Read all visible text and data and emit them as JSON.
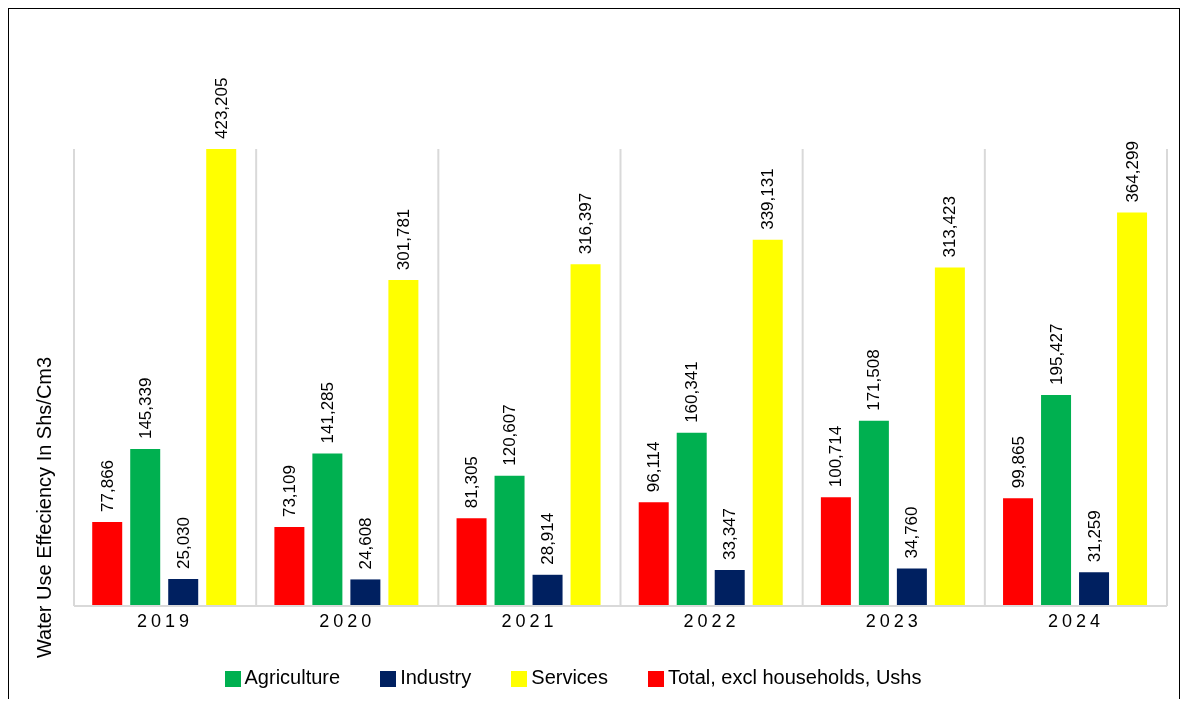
{
  "chart_data": {
    "type": "bar",
    "ylabel": "Water  Use Effeciency In Shs/Cm3",
    "categories": [
      "2019",
      "2020",
      "2021",
      "2022",
      "2023",
      "2024"
    ],
    "series": [
      {
        "name": "Total, excl households, Ushs",
        "color": "#ff0000",
        "values": [
          77866,
          73109,
          81305,
          96114,
          100714,
          99865
        ],
        "value_labels": [
          "77,866",
          "73,109",
          "81,305",
          "96,114",
          "100,714",
          "99,865"
        ]
      },
      {
        "name": "Agriculture",
        "color": "#00b050",
        "values": [
          145339,
          141285,
          120607,
          160341,
          171508,
          195427
        ],
        "value_labels": [
          "145,339",
          "141,285",
          "120,607",
          "160,341",
          "171,508",
          "195,427"
        ]
      },
      {
        "name": "Industry",
        "color": "#002060",
        "values": [
          25030,
          24608,
          28914,
          33347,
          34760,
          31259
        ],
        "value_labels": [
          "25,030",
          "24,608",
          "28,914",
          "33,347",
          "34,760",
          "31,259"
        ]
      },
      {
        "name": "Services",
        "color": "#ffff00",
        "values": [
          423205,
          301781,
          316397,
          339131,
          313423,
          364299
        ],
        "value_labels": [
          "423,205",
          "301,781",
          "316,397",
          "339,131",
          "313,423",
          "364,299"
        ]
      }
    ],
    "grid": "x",
    "legend": "bottom"
  }
}
